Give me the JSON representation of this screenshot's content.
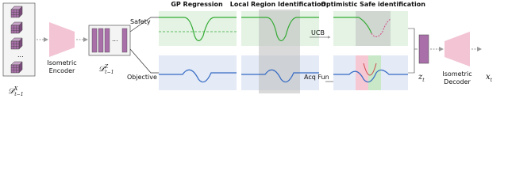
{
  "headers": [
    "GP Regression",
    "Local Region Identification",
    "Optimistic Safe identification"
  ],
  "labels": {
    "safety": "Safety",
    "objective": "Objective",
    "ucb": "UCB",
    "acq": "Acq Fun",
    "encoder": [
      "Isometric",
      "Encoder"
    ],
    "decoder": [
      "Isometric",
      "Decoder"
    ],
    "dots": "..."
  },
  "math": {
    "dx": {
      "main": "𝒟",
      "sup": "X",
      "sub": "t−1"
    },
    "dz": {
      "main": "𝒟",
      "sup": "Z",
      "sub": "t−1"
    },
    "z": {
      "main": "z",
      "sub": "t"
    },
    "x": {
      "main": "x",
      "sub": "t"
    }
  }
}
